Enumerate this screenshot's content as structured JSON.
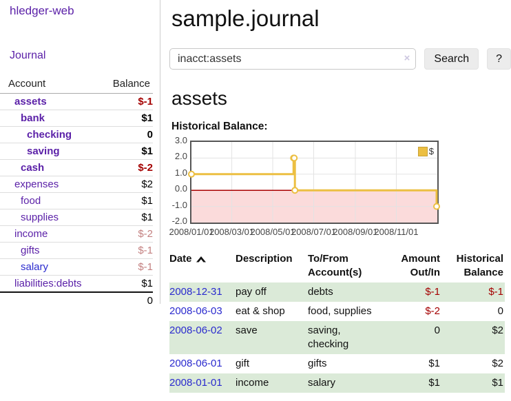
{
  "app": {
    "name": "hledger-web"
  },
  "colors": {
    "accent_purple": "#5b21a8",
    "link_blue": "#2a2ace",
    "negative_strong": "#a40000",
    "negative_faded": "#c48181",
    "row_green": "#dbead8",
    "chart_gold": "#ecbf42",
    "chart_negative_fill": "#fbdbdb",
    "chart_zero_line": "#a80000"
  },
  "sidebar": {
    "nav_journal": "Journal",
    "account_header": "Account",
    "balance_header": "Balance",
    "accounts": [
      {
        "name": "assets",
        "balance": "$-1",
        "level": 0,
        "bold": true
      },
      {
        "name": "bank",
        "balance": "$1",
        "level": 1,
        "bold": true
      },
      {
        "name": "checking",
        "balance": "0",
        "level": 2,
        "bold": true
      },
      {
        "name": "saving",
        "balance": "$1",
        "level": 2,
        "bold": true
      },
      {
        "name": "cash",
        "balance": "$-2",
        "level": 1,
        "bold": true
      },
      {
        "name": "expenses",
        "balance": "$2",
        "level": 0,
        "bold": false
      },
      {
        "name": "food",
        "balance": "$1",
        "level": 1,
        "bold": false
      },
      {
        "name": "supplies",
        "balance": "$1",
        "level": 1,
        "bold": false
      },
      {
        "name": "income",
        "balance": "$-2",
        "level": 0,
        "bold": false
      },
      {
        "name": "gifts",
        "balance": "$-1",
        "level": 1,
        "bold": false
      },
      {
        "name": "salary",
        "balance": "$-1",
        "level": 1,
        "bold": false
      },
      {
        "name": "liabilities:debts",
        "balance": "$1",
        "level": 0,
        "bold": false
      }
    ],
    "total": "0"
  },
  "main": {
    "title": "sample.journal",
    "search": {
      "value": "inacct:assets",
      "clear_icon": "×",
      "search_button": "Search",
      "help_button": "?"
    },
    "account_heading": "assets",
    "chart_label": "Historical Balance:"
  },
  "chart_data": {
    "type": "line",
    "title": "Historical Balance:",
    "style": "step-line-with-markers",
    "x_range": [
      "2008-01-01",
      "2008-12-31"
    ],
    "ylim": [
      -2,
      3
    ],
    "y_ticks": [
      "3.0",
      "2.0",
      "1.0",
      "0.0",
      "-1.0",
      "-2.0"
    ],
    "x_ticks": [
      {
        "date": "2008-01-01",
        "label": "2008/01/01"
      },
      {
        "date": "2008-03-01",
        "label": "2008/03/01"
      },
      {
        "date": "2008-05-01",
        "label": "2008/05/01"
      },
      {
        "date": "2008-07-01",
        "label": "2008/07/01"
      },
      {
        "date": "2008-09-01",
        "label": "2008/09/01"
      },
      {
        "date": "2008-11-01",
        "label": "2008/11/01"
      }
    ],
    "grid": true,
    "negative_region_below": 0,
    "legend": {
      "position": "top-right",
      "items": [
        {
          "label": "$",
          "color": "#ecbf42"
        }
      ]
    },
    "series": [
      {
        "name": "$",
        "color": "#ecbf42",
        "points": [
          {
            "x": "2008-01-01",
            "y": 1
          },
          {
            "x": "2008-06-01",
            "y": 2
          },
          {
            "x": "2008-06-02",
            "y": 2
          },
          {
            "x": "2008-06-03",
            "y": 0
          },
          {
            "x": "2008-12-31",
            "y": -1
          }
        ]
      }
    ]
  },
  "register": {
    "headers": [
      "Date",
      "Description",
      "To/From Account(s)",
      "Amount Out/In",
      "Historical Balance"
    ],
    "sort_column": "Date",
    "sort_direction": "ascending",
    "rows": [
      {
        "date": "2008-12-31",
        "description": "pay off",
        "accounts": "debts",
        "amount": "$-1",
        "balance": "$-1"
      },
      {
        "date": "2008-06-03",
        "description": "eat & shop",
        "accounts": "food, supplies",
        "amount": "$-2",
        "balance": "0"
      },
      {
        "date": "2008-06-02",
        "description": "save",
        "accounts": "saving, checking",
        "amount": "0",
        "balance": "$2"
      },
      {
        "date": "2008-06-01",
        "description": "gift",
        "accounts": "gifts",
        "amount": "$1",
        "balance": "$2"
      },
      {
        "date": "2008-01-01",
        "description": "income",
        "accounts": "salary",
        "amount": "$1",
        "balance": "$1"
      }
    ]
  }
}
